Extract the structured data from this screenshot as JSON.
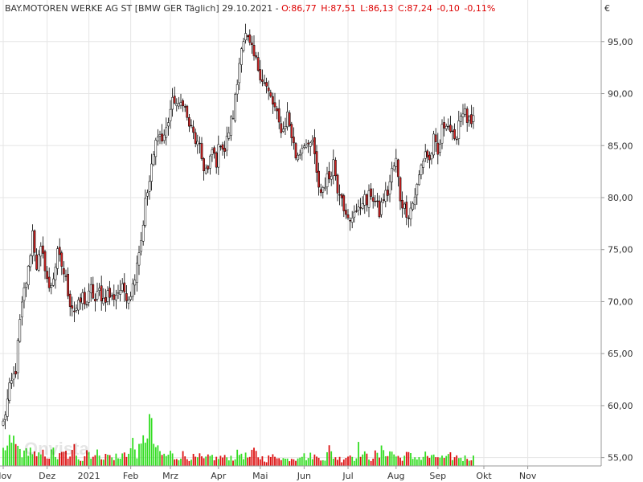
{
  "chart_data": {
    "type": "candlestick",
    "header": {
      "instrument": "BAY.MOTOREN WERKE AG ST [BMW GER  Täglich] 29.10.2021",
      "open": "O:86,77",
      "high": "H:87,51",
      "low": "L:86,13",
      "close": "C:87,24",
      "change": "-0,10",
      "change_pct": "-0,11%"
    },
    "currency": "€",
    "watermark": "Onvista",
    "grid": true,
    "y_axis": {
      "position": "right",
      "range": [
        54.2,
        99
      ],
      "ticks": [
        55,
        60,
        65,
        70,
        75,
        80,
        85,
        90,
        95
      ],
      "tick_labels": [
        "55,00",
        "60,00",
        "65,00",
        "70,00",
        "75,00",
        "80,00",
        "85,00",
        "90,00",
        "95,00"
      ]
    },
    "x_axis": {
      "labels": [
        "Nov",
        "Dez",
        "2021",
        "Feb",
        "Mrz",
        "Apr",
        "Mai",
        "Jun",
        "Jul",
        "Aug",
        "Sep",
        "Okt",
        "Nov"
      ],
      "label_bar_index": [
        0,
        21,
        41,
        61,
        80,
        103,
        123,
        144,
        165,
        188,
        208,
        230,
        251
      ]
    },
    "colors": {
      "up_candle": "#ffffff",
      "down_candle": "#cc2222",
      "wick": "#000000",
      "volume_up": "#33dd22",
      "volume_down": "#dd1111",
      "header_text": "#333333",
      "ohlc_text": "#dd0000"
    },
    "price_anchors": [
      [
        0,
        58.3
      ],
      [
        3,
        61.5
      ],
      [
        6,
        63.5
      ],
      [
        8,
        68
      ],
      [
        10,
        71
      ],
      [
        12,
        73
      ],
      [
        14,
        76.7
      ],
      [
        16,
        73.5
      ],
      [
        18,
        74.8
      ],
      [
        20,
        73.5
      ],
      [
        22,
        71
      ],
      [
        24,
        72.5
      ],
      [
        26,
        74.5
      ],
      [
        28,
        73.5
      ],
      [
        30,
        72
      ],
      [
        32,
        70
      ],
      [
        34,
        69.2
      ],
      [
        36,
        69.5
      ],
      [
        38,
        70.5
      ],
      [
        40,
        69.8
      ],
      [
        42,
        71.2
      ],
      [
        44,
        70
      ],
      [
        46,
        71
      ],
      [
        48,
        70.2
      ],
      [
        50,
        70.8
      ],
      [
        52,
        70.3
      ],
      [
        54,
        70.8
      ],
      [
        56,
        71.2
      ],
      [
        58,
        71
      ],
      [
        60,
        70.5
      ],
      [
        62,
        71.5
      ],
      [
        64,
        74
      ],
      [
        66,
        76
      ],
      [
        68,
        79.5
      ],
      [
        70,
        81.5
      ],
      [
        72,
        84
      ],
      [
        74,
        86.5
      ],
      [
        76,
        85.5
      ],
      [
        78,
        86.5
      ],
      [
        80,
        88.5
      ],
      [
        82,
        89.5
      ],
      [
        84,
        88.5
      ],
      [
        86,
        89.5
      ],
      [
        88,
        87.5
      ],
      [
        90,
        86.5
      ],
      [
        92,
        85.5
      ],
      [
        94,
        84.5
      ],
      [
        96,
        83
      ],
      [
        98,
        82.5
      ],
      [
        100,
        84.5
      ],
      [
        102,
        83.5
      ],
      [
        104,
        85.5
      ],
      [
        106,
        84.5
      ],
      [
        108,
        86.5
      ],
      [
        110,
        88
      ],
      [
        112,
        91
      ],
      [
        114,
        95
      ],
      [
        116,
        95.5
      ],
      [
        118,
        94.5
      ],
      [
        120,
        93.5
      ],
      [
        122,
        92.5
      ],
      [
        124,
        91.5
      ],
      [
        126,
        90.5
      ],
      [
        128,
        89.5
      ],
      [
        130,
        88.5
      ],
      [
        132,
        87
      ],
      [
        134,
        86.5
      ],
      [
        136,
        88
      ],
      [
        138,
        86
      ],
      [
        140,
        84
      ],
      [
        142,
        84.5
      ],
      [
        144,
        85.5
      ],
      [
        146,
        84.5
      ],
      [
        148,
        85.5
      ],
      [
        150,
        82
      ],
      [
        152,
        80.5
      ],
      [
        154,
        81.5
      ],
      [
        156,
        82
      ],
      [
        158,
        83.5
      ],
      [
        160,
        81
      ],
      [
        162,
        80.5
      ],
      [
        164,
        78
      ],
      [
        166,
        77.5
      ],
      [
        168,
        79
      ],
      [
        170,
        78.5
      ],
      [
        172,
        80
      ],
      [
        174,
        79.5
      ],
      [
        176,
        80.5
      ],
      [
        178,
        79.5
      ],
      [
        180,
        78.5
      ],
      [
        182,
        80
      ],
      [
        184,
        80.5
      ],
      [
        186,
        82.5
      ],
      [
        188,
        83.5
      ],
      [
        190,
        80
      ],
      [
        192,
        79
      ],
      [
        194,
        78.5
      ],
      [
        196,
        79.5
      ],
      [
        198,
        81
      ],
      [
        200,
        83
      ],
      [
        202,
        84.5
      ],
      [
        204,
        83.5
      ],
      [
        206,
        85.5
      ],
      [
        208,
        84
      ],
      [
        210,
        86.5
      ],
      [
        212,
        87.5
      ],
      [
        214,
        86.5
      ],
      [
        216,
        85
      ],
      [
        218,
        87.5
      ],
      [
        220,
        88.5
      ],
      [
        222,
        87.5
      ],
      [
        224,
        86.8
      ],
      [
        225,
        87.2
      ]
    ],
    "volume_anchors": [
      [
        0,
        18
      ],
      [
        2,
        22
      ],
      [
        4,
        35
      ],
      [
        6,
        25
      ],
      [
        8,
        20
      ],
      [
        10,
        14
      ],
      [
        12,
        22
      ],
      [
        14,
        18
      ],
      [
        16,
        10
      ],
      [
        18,
        14
      ],
      [
        20,
        16
      ],
      [
        22,
        12
      ],
      [
        24,
        18
      ],
      [
        26,
        10
      ],
      [
        28,
        14
      ],
      [
        30,
        16
      ],
      [
        32,
        9
      ],
      [
        34,
        22
      ],
      [
        36,
        12
      ],
      [
        38,
        8
      ],
      [
        40,
        20
      ],
      [
        42,
        15
      ],
      [
        44,
        12
      ],
      [
        46,
        18
      ],
      [
        48,
        10
      ],
      [
        50,
        14
      ],
      [
        52,
        10
      ],
      [
        54,
        12
      ],
      [
        56,
        8
      ],
      [
        58,
        20
      ],
      [
        60,
        14
      ],
      [
        62,
        28
      ],
      [
        64,
        16
      ],
      [
        66,
        22
      ],
      [
        68,
        38
      ],
      [
        70,
        56
      ],
      [
        72,
        30
      ],
      [
        74,
        18
      ],
      [
        76,
        14
      ],
      [
        78,
        12
      ],
      [
        80,
        16
      ],
      [
        82,
        10
      ],
      [
        84,
        12
      ],
      [
        86,
        14
      ],
      [
        88,
        10
      ],
      [
        90,
        12
      ],
      [
        92,
        9
      ],
      [
        94,
        11
      ],
      [
        96,
        8
      ],
      [
        98,
        10
      ],
      [
        100,
        12
      ],
      [
        102,
        9
      ],
      [
        104,
        11
      ],
      [
        106,
        10
      ],
      [
        108,
        12
      ],
      [
        110,
        10
      ],
      [
        112,
        14
      ],
      [
        114,
        16
      ],
      [
        116,
        12
      ],
      [
        118,
        10
      ],
      [
        120,
        18
      ],
      [
        122,
        12
      ],
      [
        124,
        10
      ],
      [
        126,
        8
      ],
      [
        128,
        12
      ],
      [
        130,
        10
      ],
      [
        132,
        14
      ],
      [
        134,
        9
      ],
      [
        136,
        8
      ],
      [
        138,
        11
      ],
      [
        140,
        10
      ],
      [
        142,
        16
      ],
      [
        144,
        12
      ],
      [
        146,
        10
      ],
      [
        148,
        14
      ],
      [
        150,
        10
      ],
      [
        152,
        12
      ],
      [
        154,
        9
      ],
      [
        156,
        20
      ],
      [
        158,
        12
      ],
      [
        160,
        10
      ],
      [
        162,
        8
      ],
      [
        164,
        12
      ],
      [
        166,
        14
      ],
      [
        168,
        10
      ],
      [
        170,
        22
      ],
      [
        172,
        14
      ],
      [
        174,
        12
      ],
      [
        176,
        10
      ],
      [
        178,
        14
      ],
      [
        180,
        12
      ],
      [
        182,
        24
      ],
      [
        184,
        14
      ],
      [
        186,
        18
      ],
      [
        188,
        12
      ],
      [
        190,
        10
      ],
      [
        192,
        12
      ],
      [
        194,
        14
      ],
      [
        196,
        10
      ],
      [
        198,
        12
      ],
      [
        200,
        9
      ],
      [
        202,
        14
      ],
      [
        204,
        11
      ],
      [
        206,
        10
      ],
      [
        208,
        12
      ],
      [
        210,
        10
      ],
      [
        212,
        9
      ],
      [
        214,
        12
      ],
      [
        216,
        10
      ],
      [
        218,
        12
      ],
      [
        220,
        9
      ],
      [
        222,
        11
      ],
      [
        225,
        10
      ]
    ]
  }
}
